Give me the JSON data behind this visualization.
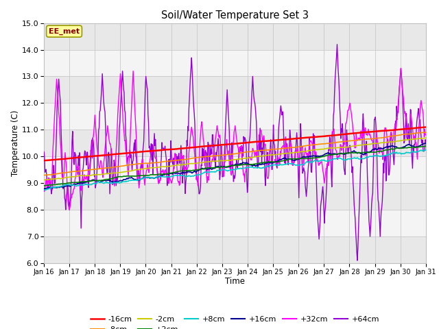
{
  "title": "Soil/Water Temperature Set 3",
  "xlabel": "Time",
  "ylabel": "Temperature (C)",
  "ylim": [
    6.0,
    15.0
  ],
  "yticks": [
    6.0,
    7.0,
    8.0,
    9.0,
    10.0,
    11.0,
    12.0,
    13.0,
    14.0,
    15.0
  ],
  "xtick_labels": [
    "Jan 16",
    "Jan 17",
    "Jan 18",
    "Jan 19",
    "Jan 20",
    "Jan 21",
    "Jan 22",
    "Jan 23",
    "Jan 24",
    "Jan 25",
    "Jan 26",
    "Jan 27",
    "Jan 28",
    "Jan 29",
    "Jan 30",
    "Jan 31"
  ],
  "n_days": 15,
  "pts_per_day": 48,
  "annotation_text": "EE_met",
  "annotation_color": "#8B0000",
  "annotation_bg": "#FFFFA0",
  "annotation_border": "#999900",
  "series_colors": {
    "-16cm": "#FF0000",
    "-8cm": "#FF8C00",
    "-2cm": "#CCCC00",
    "+2cm": "#008000",
    "+8cm": "#00CCCC",
    "+16cm": "#000090",
    "+32cm": "#FF00FF",
    "+64cm": "#9400D3"
  },
  "band_colors": [
    "#E8E8E8",
    "#F4F4F4"
  ],
  "spine_color": "#C0C0C0",
  "grid_color": "#C8C8C8"
}
